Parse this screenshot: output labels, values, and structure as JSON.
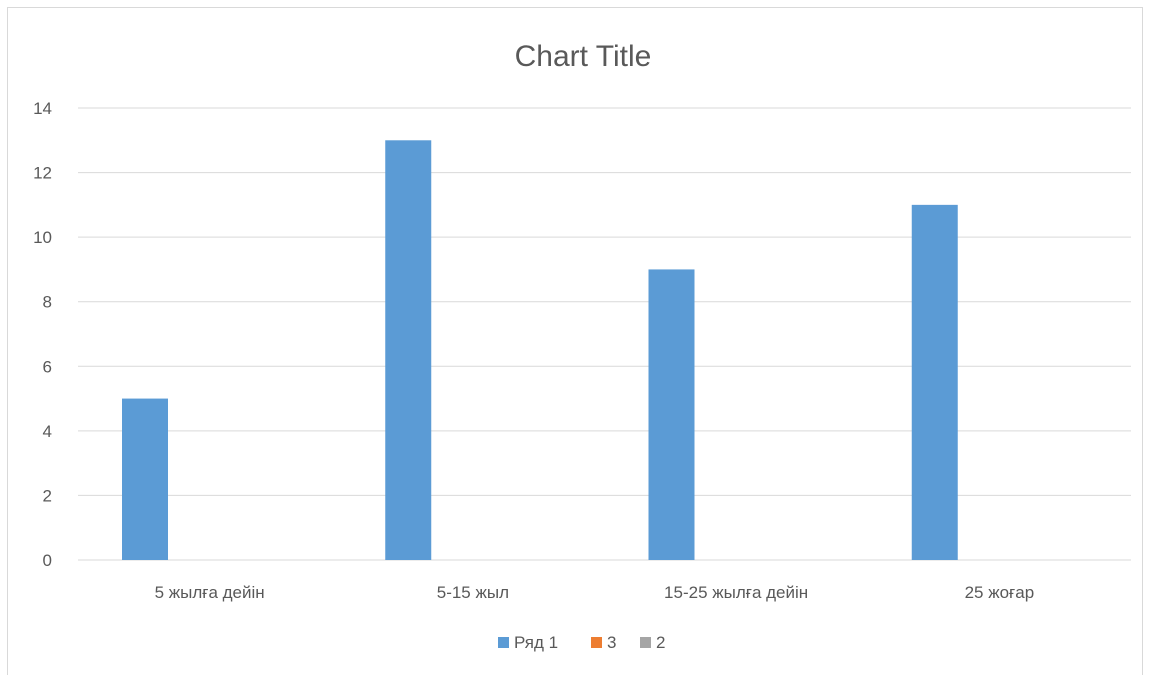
{
  "chart_data": {
    "type": "bar",
    "title": "Chart Title",
    "categories": [
      "5 жылға дейін",
      "5-15 жыл",
      "15-25 жылға дейін",
      "25 жоғар"
    ],
    "series": [
      {
        "name": "Ряд 1",
        "values": [
          5,
          13,
          9,
          11
        ],
        "color": "#5b9bd5"
      },
      {
        "name": "3",
        "values": [
          null,
          null,
          null,
          null
        ],
        "color": "#ed7d31"
      },
      {
        "name": "2",
        "values": [
          null,
          null,
          null,
          null
        ],
        "color": "#a5a5a5"
      }
    ],
    "ylim": [
      0,
      14
    ],
    "yticks": [
      0,
      2,
      4,
      6,
      8,
      10,
      12,
      14
    ],
    "grid": true,
    "legend_position": "bottom"
  }
}
